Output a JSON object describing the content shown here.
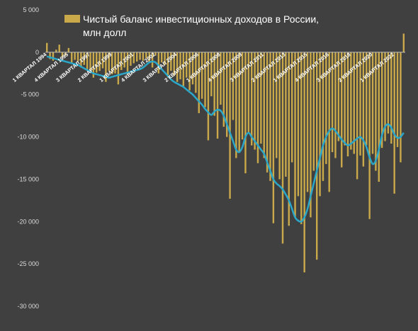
{
  "chart_data": {
    "type": "bar",
    "title": "",
    "xlabel": "",
    "ylabel": "",
    "ylim": [
      -30000,
      5000
    ],
    "y_ticks": [
      5000,
      0,
      -5000,
      -10000,
      -15000,
      -20000,
      -25000,
      -30000
    ],
    "y_tick_labels": [
      "5 000",
      "0",
      "-5 000",
      "-10 000",
      "-15 000",
      "-20 000",
      "-25 000",
      "-30 000"
    ],
    "grid": false,
    "legend_position": "top",
    "x_tick_labels": [
      {
        "index": 0,
        "label": "1 КВАРТАЛ 1994"
      },
      {
        "index": 7,
        "label": "4 КВАРТАЛ 1995"
      },
      {
        "index": 14,
        "label": "3 КВАРТАЛ 1997"
      },
      {
        "index": 21,
        "label": "2 КВАРТАЛ 1999"
      },
      {
        "index": 28,
        "label": "1 КВАРТАЛ 2001"
      },
      {
        "index": 35,
        "label": "4 КВАРТАЛ 2002"
      },
      {
        "index": 42,
        "label": "3 КВАРТАЛ 2004"
      },
      {
        "index": 49,
        "label": "2 КВАРТАЛ 2006"
      },
      {
        "index": 56,
        "label": "1 КВАРТАЛ 2008"
      },
      {
        "index": 63,
        "label": "4 КВАРТАЛ 2009"
      },
      {
        "index": 70,
        "label": "3 КВАРТАЛ 2011"
      },
      {
        "index": 77,
        "label": "2 КВАРТАЛ 2013"
      },
      {
        "index": 84,
        "label": "1 КВАРТАЛ 2015"
      },
      {
        "index": 91,
        "label": "4 КВАРТАЛ 2016"
      },
      {
        "index": 98,
        "label": "3 КВАРТАЛ 2018"
      },
      {
        "index": 105,
        "label": "2 КВАРТАЛ 2020"
      },
      {
        "index": 112,
        "label": "1 КВАРТАЛ 2022"
      }
    ],
    "series": [
      {
        "name": "Чистый баланс инвестиционных доходов в России, млн долл",
        "kind": "bar",
        "color": "#c9a94a",
        "values": [
          1100,
          -800,
          -1000,
          300,
          900,
          -600,
          -400,
          500,
          -1200,
          -900,
          -1100,
          -1800,
          -1500,
          -2000,
          -2300,
          -3000,
          -2400,
          -2200,
          -1900,
          -3500,
          -2200,
          -2600,
          -2500,
          -3800,
          -2100,
          -1800,
          -2600,
          -1600,
          -1300,
          -1100,
          -900,
          -1000,
          -700,
          -1200,
          -1800,
          -400,
          -2500,
          -1200,
          -1500,
          -3000,
          -2200,
          -2800,
          -3500,
          -3200,
          -4000,
          -3000,
          -4500,
          -3800,
          -4800,
          -7200,
          -5500,
          -6500,
          -10400,
          -5200,
          -7500,
          -10200,
          -6200,
          -8800,
          -10000,
          -17300,
          -8000,
          -12500,
          -11800,
          -10300,
          -14300,
          -9500,
          -11000,
          -11500,
          -13100,
          -10800,
          -12500,
          -14200,
          -15200,
          -20200,
          -12500,
          -15000,
          -22600,
          -14700,
          -20500,
          -13000,
          -19500,
          -17000,
          -20300,
          -26000,
          -16500,
          -19500,
          -14000,
          -24500,
          -17000,
          -15200,
          -13200,
          -16500,
          -11800,
          -12500,
          -10500,
          -13600,
          -11000,
          -12300,
          -11500,
          -12000,
          -15000,
          -12200,
          -13500,
          -11000,
          -19700,
          -12000,
          -14000,
          -15300,
          -11300,
          -10500,
          -9600,
          -10800,
          -16700,
          -11200,
          -13000,
          2200
        ]
      },
      {
        "name": "",
        "kind": "line",
        "color": "#2aa7c9",
        "values": [
          -500,
          -600,
          -700,
          -800,
          -900,
          -1000,
          -1100,
          -1200,
          -1300,
          -1400,
          -1500,
          -1700,
          -1900,
          -2100,
          -2300,
          -2500,
          -2600,
          -2700,
          -2800,
          -2900,
          -3000,
          -2900,
          -2800,
          -2700,
          -2600,
          -2500,
          -2400,
          -2300,
          -2200,
          -2100,
          -2000,
          -1800,
          -1500,
          -1200,
          -1100,
          -1200,
          -1600,
          -2000,
          -2400,
          -2800,
          -3200,
          -3500,
          -3700,
          -3900,
          -4100,
          -4400,
          -4700,
          -5000,
          -5400,
          -5800,
          -6200,
          -6700,
          -7100,
          -7400,
          -7000,
          -6800,
          -6900,
          -7500,
          -8500,
          -9500,
          -10500,
          -11500,
          -11800,
          -11200,
          -10000,
          -9500,
          -10000,
          -10500,
          -11000,
          -11500,
          -12000,
          -13000,
          -14000,
          -15000,
          -15500,
          -15800,
          -16200,
          -16800,
          -17500,
          -18500,
          -19500,
          -19900,
          -20000,
          -19500,
          -18500,
          -17000,
          -15500,
          -14000,
          -12500,
          -11000,
          -10000,
          -9300,
          -9000,
          -9300,
          -9800,
          -10300,
          -10700,
          -11000,
          -10800,
          -10500,
          -10200,
          -10000,
          -10400,
          -11200,
          -12400,
          -13200,
          -12800,
          -11500,
          -9800,
          -8800,
          -8500,
          -8900,
          -9700,
          -10100,
          -10000,
          -9500
        ]
      }
    ]
  }
}
